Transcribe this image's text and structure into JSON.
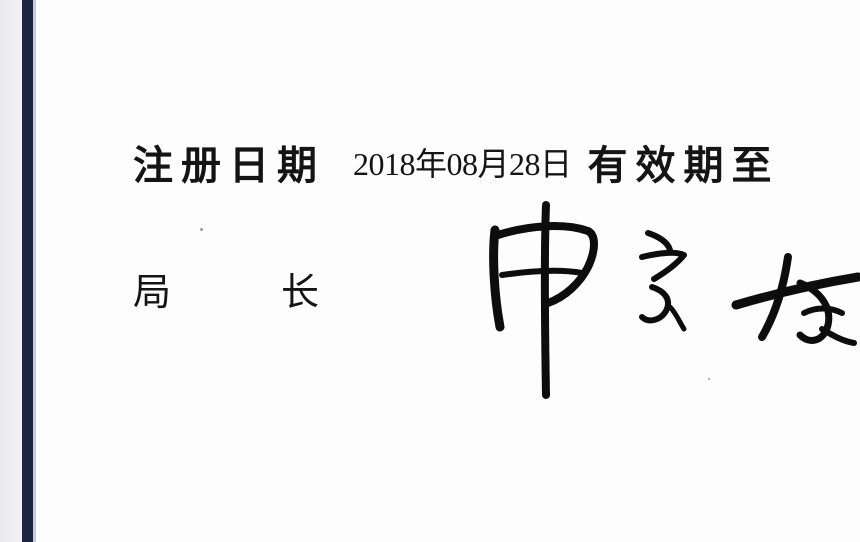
{
  "certificate": {
    "registration_label": "注册日期",
    "registration_date": "2018年08月28日",
    "validity_label": "有效期至",
    "director_title_part1": "局",
    "director_title_part2": "长",
    "signature_text": "申长雨"
  },
  "colors": {
    "border": "#1b2440",
    "ink": "#141414",
    "signature_ink": "#0d0d0d"
  }
}
